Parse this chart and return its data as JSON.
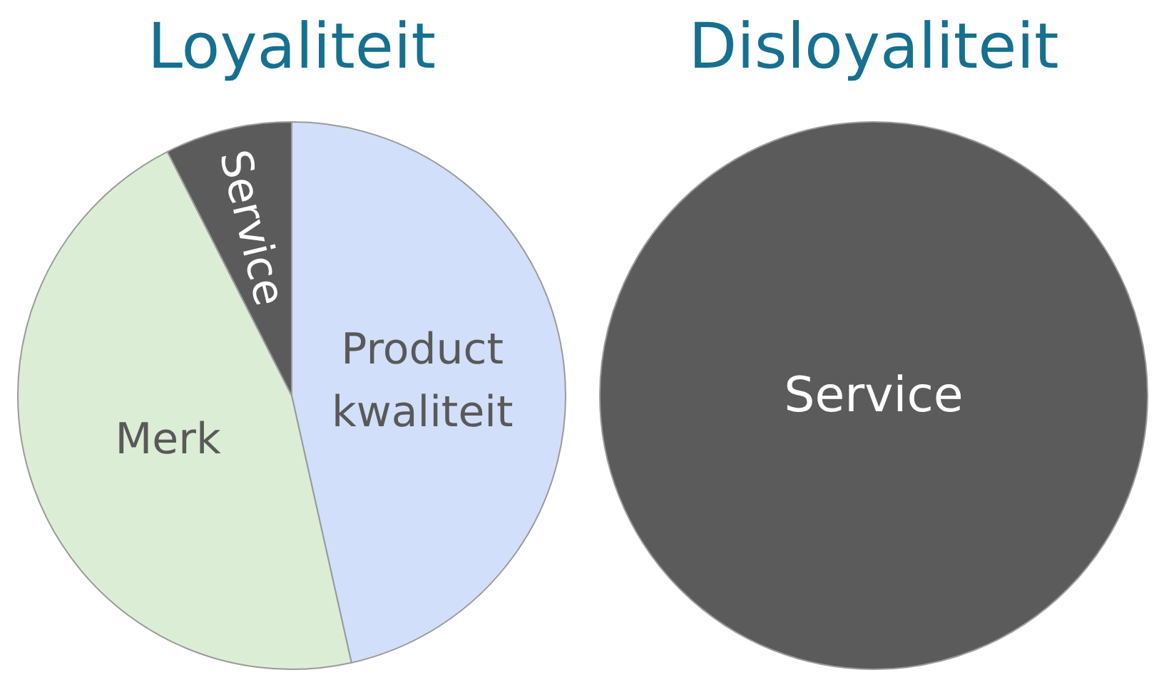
{
  "chart_data": [
    {
      "type": "pie",
      "title": "Loyaliteit",
      "categories": [
        "Product kwaliteit",
        "Merk",
        "Service"
      ],
      "values": [
        46.5,
        46,
        7.5
      ],
      "colors": [
        "#d2dffa",
        "#dcedd6",
        "#5b5b5b"
      ]
    },
    {
      "type": "pie",
      "title": "Disloyaliteit",
      "categories": [
        "Service"
      ],
      "values": [
        100
      ],
      "colors": [
        "#5b5b5b"
      ]
    }
  ]
}
